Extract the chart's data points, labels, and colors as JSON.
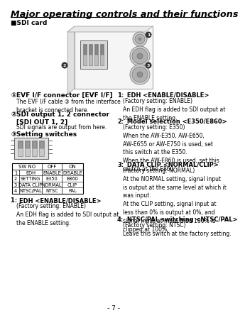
{
  "title": "Major operating controls and their functions",
  "section": "■SDI card",
  "page_num": "- 7 -",
  "bg_color": "#ffffff",
  "title_color": "#000000",
  "left_items": [
    {
      "bullet": "①",
      "label": "EVF I/F connector [EVF I/F]",
      "body": "The EVF I/F cable ③ from the interface\nbracket is connected here."
    },
    {
      "bullet": "②",
      "label": "SDI output 1, 2 connector\n[SDI OUT 1, 2]",
      "body": "SDI signals are output from here."
    },
    {
      "bullet": "③",
      "label": "Setting switches",
      "body": ""
    }
  ],
  "table_headers": [
    "SW NO",
    "OFF",
    "ON"
  ],
  "table_rows": [
    [
      "1",
      "EDH",
      "ENABLE",
      "DISABLE"
    ],
    [
      "2",
      "SETTING",
      "E350",
      "E860"
    ],
    [
      "3",
      "DATA CLIP",
      "NORMAL",
      "CLIP"
    ],
    [
      "4",
      "NTSC/PAL",
      "NTSC",
      "PAL"
    ]
  ],
  "right_items": [
    {
      "num": "1:",
      "label": " EDH <ENABLE/DISABLE>",
      "body": "(Factory setting: ENABLE)\nAn EDH flag is added to SDI output at\nthe ENABLE setting."
    },
    {
      "num": "2:",
      "label": " Model selection <E350/E860>",
      "body": "(Factory setting: E350)\nWhen the AW-E350, AW-E650,\nAW-E655 or AW-E750 is used, set\nthis switch at the E350.\nWhen the AW-E860 is used, set this\nswitch at the E860."
    },
    {
      "num": "3:",
      "label": " DATA CLIP <NORMAL/CLIP>",
      "body": "(Factory setting: NORMAL)\nAt the NORMAL setting, signal input\nis output at the same level at which it\nwas input.\nAt the CLIP setting, signal input at\nless than 0% is output at 0%, and\nsignal input at more than 100% is\nclipped at 100%."
    },
    {
      "num": "4:",
      "label": " NTSC/PAL switching <NTSC/PAL>",
      "body": "(Factory setting: NTSC)\nLeave this switch at the factory setting."
    }
  ]
}
